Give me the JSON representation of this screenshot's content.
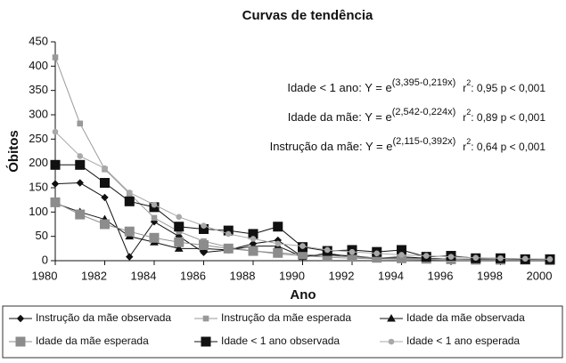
{
  "chart_data": {
    "type": "line",
    "title": "Curvas de tendência",
    "x_label": "Ano",
    "y_label": "Óbitos",
    "x": [
      1980,
      1981,
      1982,
      1983,
      1984,
      1985,
      1986,
      1987,
      1988,
      1989,
      1990,
      1991,
      1992,
      1993,
      1994,
      1995,
      1996,
      1997,
      1998,
      1999,
      2000
    ],
    "series": [
      {
        "name": "Instrução da mãe observada",
        "color": "#111111",
        "marker": "diamond",
        "values": [
          158,
          160,
          130,
          8,
          80,
          50,
          17,
          22,
          35,
          42,
          8,
          12,
          10,
          5,
          8,
          5,
          3,
          3,
          2,
          2,
          2
        ]
      },
      {
        "name": "Instrução da mãe esperada",
        "color": "#999999",
        "marker": "small-square",
        "values": [
          418,
          282,
          188,
          138,
          88,
          60,
          40,
          28,
          20,
          14,
          10,
          7,
          5,
          4,
          3,
          2,
          1,
          1,
          1,
          1,
          1
        ]
      },
      {
        "name": "Idade da mãe observada",
        "color": "#111111",
        "marker": "triangle",
        "values": [
          118,
          100,
          85,
          50,
          38,
          25,
          25,
          22,
          30,
          30,
          8,
          15,
          8,
          5,
          5,
          5,
          3,
          3,
          2,
          2,
          2
        ]
      },
      {
        "name": "Idade da mãe esperada",
        "color": "#8c8c8c",
        "marker": "square",
        "values": [
          120,
          95,
          75,
          60,
          47,
          38,
          32,
          25,
          20,
          16,
          13,
          10,
          8,
          6,
          5,
          4,
          3,
          2,
          2,
          2,
          1
        ]
      },
      {
        "name": "Idade < 1 ano observada",
        "color": "#111111",
        "marker": "square",
        "values": [
          197,
          197,
          160,
          122,
          110,
          70,
          65,
          62,
          55,
          70,
          28,
          20,
          22,
          18,
          22,
          8,
          10,
          5,
          5,
          3,
          3
        ]
      },
      {
        "name": "Idade < 1 ano esperada",
        "color": "#a8a8a8",
        "marker": "circle",
        "values": [
          265,
          215,
          190,
          140,
          115,
          90,
          72,
          55,
          45,
          35,
          30,
          22,
          18,
          15,
          12,
          10,
          8,
          6,
          5,
          4,
          3
        ]
      }
    ],
    "annotations": [
      {
        "label": "Idade < 1 ano: Y = e",
        "exponent": "(3,395-0,219x)",
        "r": "r",
        "r_exp": "2",
        "stat": ": 0,95 p < 0,001"
      },
      {
        "label": "Idade da mãe: Y = e",
        "exponent": "(2,542-0,224x)",
        "r": "r",
        "r_exp": "2",
        "stat": ": 0,89 p < 0,001"
      },
      {
        "label": "Instrução da mãe: Y = e",
        "exponent": "(2,115-0,392x)",
        "r": "r",
        "r_exp": "2",
        "stat": ": 0,64 p < 0,001"
      }
    ],
    "xlim": [
      1980,
      2000
    ],
    "xticks": [
      1980,
      1982,
      1984,
      1986,
      1988,
      1990,
      1992,
      1994,
      1996,
      1998,
      2000
    ],
    "ylim": [
      0,
      450
    ],
    "yticks": [
      0,
      50,
      100,
      150,
      200,
      250,
      300,
      350,
      400,
      450
    ]
  }
}
